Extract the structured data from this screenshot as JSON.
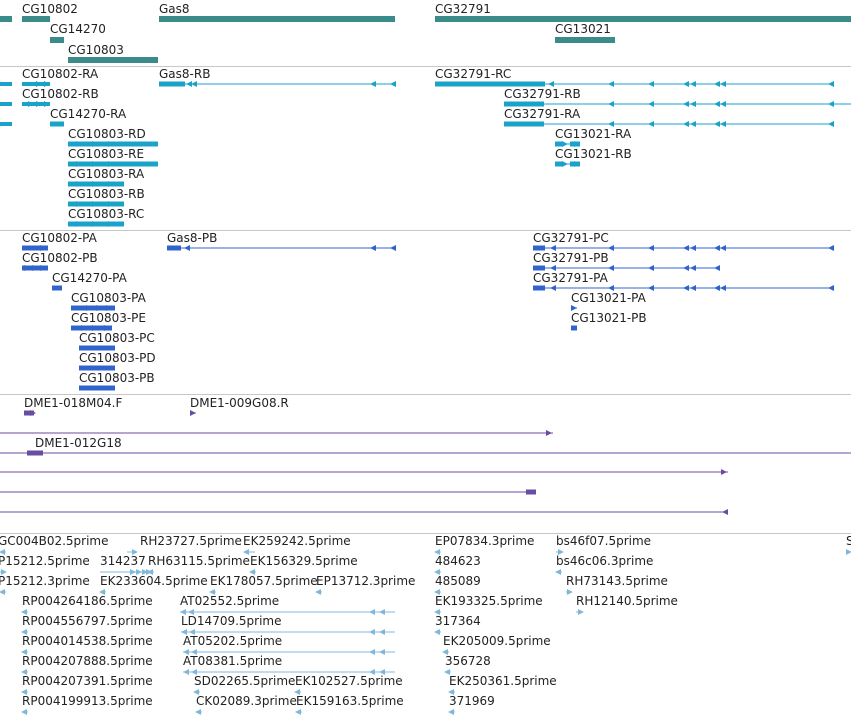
{
  "colors": {
    "gene": "#3c8b8b",
    "mrna": "#1aa3c8",
    "protein": "#3163cc",
    "clone": "#6a4ca3",
    "est": "#80b8dc",
    "separator": "#c8c8c8"
  },
  "tracks": {
    "genes": [
      "CG10802",
      "CG14270",
      "CG10803",
      "Gas8",
      "CG32791",
      "CG13021"
    ],
    "transcripts": [
      "CG10802-RA",
      "CG10802-RB",
      "CG14270-RA",
      "CG10803-RD",
      "CG10803-RE",
      "CG10803-RA",
      "CG10803-RB",
      "CG10803-RC",
      "Gas8-RB",
      "CG32791-RC",
      "CG32791-RB",
      "CG32791-RA",
      "CG13021-RA",
      "CG13021-RB"
    ],
    "proteins": [
      "CG10802-PA",
      "CG10802-PB",
      "CG14270-PA",
      "CG10803-PA",
      "CG10803-PE",
      "CG10803-PC",
      "CG10803-PD",
      "CG10803-PB",
      "Gas8-PB",
      "CG32791-PC",
      "CG32791-PB",
      "CG32791-PA",
      "CG13021-PA",
      "CG13021-PB"
    ],
    "clones": [
      "DME1-018M04.F",
      "DME1-009G08.R",
      "DME1-012G18"
    ],
    "ests": [
      "GC004B02.5prime",
      "RH23727.5prime",
      "EK259242.5prime",
      "EP07834.3prime",
      "bs46f07.5prime",
      "S",
      "P15212.5prime",
      "314237",
      "RH63115.5prime",
      "EK156329.5prime",
      "484623",
      "bs46c06.3prime",
      "P15212.3prime",
      "EK233604.5prime",
      "EK178057.5prime",
      "EP13712.3prime",
      "485089",
      "RH73143.5prime",
      "RP004264186.5prime",
      "AT02552.5prime",
      "EK193325.5prime",
      "RH12140.5prime",
      "RP004556797.5prime",
      "LD14709.5prime",
      "317364",
      "RP004014538.5prime",
      "AT05202.5prime",
      "EK205009.5prime",
      "RP004207888.5prime",
      "AT08381.5prime",
      "356728",
      "RP004207391.5prime",
      "SD02265.5prime",
      "EK102527.5prime",
      "EK250361.5prime",
      "RP004199913.5prime",
      "CK02089.3prime",
      "EK159163.5prime",
      "371969"
    ]
  }
}
